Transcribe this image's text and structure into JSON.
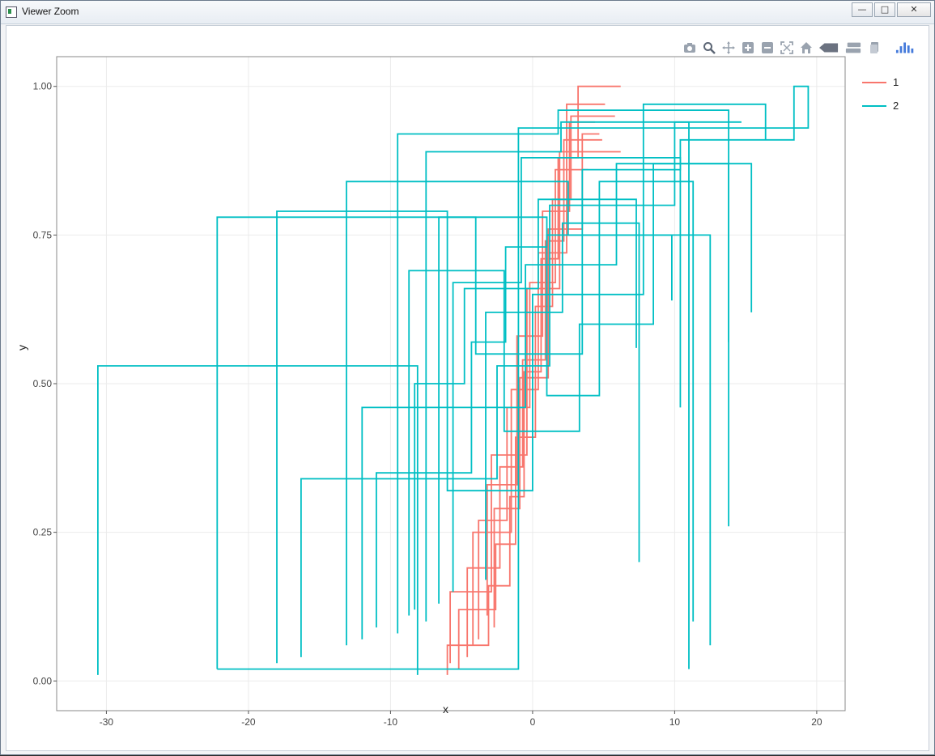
{
  "window": {
    "title": "Viewer Zoom",
    "controls": [
      "minimize",
      "maximize",
      "close"
    ]
  },
  "modebar": {
    "icons": [
      "camera-icon",
      "zoom-icon",
      "pan-icon",
      "zoom-in-icon",
      "zoom-out-icon",
      "autoscale-icon",
      "home-icon",
      "spike-lines-icon",
      "compare-hover-icon",
      "closest-hover-icon",
      "plotly-logo-icon"
    ],
    "accent": "#5a80c0"
  },
  "chart_data": {
    "type": "line",
    "xlabel": "x",
    "ylabel": "y",
    "xlim": [
      -33.5,
      22
    ],
    "ylim": [
      -0.05,
      1.05
    ],
    "x_ticks": [
      "-30",
      "-20",
      "-10",
      "0",
      "10",
      "20"
    ],
    "y_ticks": [
      "0.00",
      "0.25",
      "0.50",
      "0.75",
      "1.00"
    ],
    "grid": true,
    "legend": "right",
    "series": [
      {
        "name": "1",
        "color": "#f8766d",
        "paths": [
          [
            [
              -6.0,
              0.01
            ],
            [
              -6.0,
              0.06
            ],
            [
              -3.1,
              0.06
            ],
            [
              -3.1,
              0.16
            ],
            [
              -1.6,
              0.16
            ],
            [
              -1.6,
              0.31
            ],
            [
              -0.6,
              0.31
            ],
            [
              -0.6,
              0.52
            ],
            [
              0.6,
              0.52
            ],
            [
              0.6,
              0.71
            ],
            [
              1.8,
              0.71
            ],
            [
              1.8,
              0.88
            ],
            [
              3.2,
              0.88
            ],
            [
              3.2,
              1.0
            ],
            [
              6.2,
              1.0
            ]
          ],
          [
            [
              -5.2,
              0.02
            ],
            [
              -5.2,
              0.12
            ],
            [
              -2.6,
              0.12
            ],
            [
              -2.6,
              0.23
            ],
            [
              -1.2,
              0.23
            ],
            [
              -1.2,
              0.41
            ],
            [
              0.2,
              0.41
            ],
            [
              0.2,
              0.63
            ],
            [
              1.4,
              0.63
            ],
            [
              1.4,
              0.81
            ],
            [
              2.7,
              0.81
            ],
            [
              2.7,
              0.95
            ],
            [
              5.8,
              0.95
            ]
          ],
          [
            [
              -4.6,
              0.04
            ],
            [
              -4.6,
              0.19
            ],
            [
              -2.3,
              0.19
            ],
            [
              -2.3,
              0.36
            ],
            [
              -0.7,
              0.36
            ],
            [
              -0.7,
              0.54
            ],
            [
              0.9,
              0.54
            ],
            [
              0.9,
              0.74
            ],
            [
              2.2,
              0.74
            ],
            [
              2.2,
              0.91
            ],
            [
              4.9,
              0.91
            ]
          ],
          [
            [
              -3.8,
              0.07
            ],
            [
              -3.8,
              0.27
            ],
            [
              -1.8,
              0.27
            ],
            [
              -1.8,
              0.46
            ],
            [
              -0.2,
              0.46
            ],
            [
              -0.2,
              0.67
            ],
            [
              1.6,
              0.67
            ],
            [
              1.6,
              0.86
            ],
            [
              3.9,
              0.86
            ]
          ],
          [
            [
              -3.2,
              0.11
            ],
            [
              -3.2,
              0.33
            ],
            [
              -1.1,
              0.33
            ],
            [
              -1.1,
              0.58
            ],
            [
              0.7,
              0.58
            ],
            [
              0.7,
              0.79
            ],
            [
              2.6,
              0.79
            ],
            [
              2.6,
              0.94
            ],
            [
              4.4,
              0.94
            ]
          ],
          [
            [
              -5.8,
              0.03
            ],
            [
              -5.8,
              0.15
            ],
            [
              -2.9,
              0.15
            ],
            [
              -2.9,
              0.38
            ],
            [
              -0.4,
              0.38
            ],
            [
              -0.4,
              0.66
            ],
            [
              1.9,
              0.66
            ],
            [
              1.9,
              0.89
            ],
            [
              6.2,
              0.89
            ]
          ],
          [
            [
              -4.2,
              0.06
            ],
            [
              -4.2,
              0.25
            ],
            [
              -1.5,
              0.25
            ],
            [
              -1.5,
              0.49
            ],
            [
              0.4,
              0.49
            ],
            [
              0.4,
              0.72
            ],
            [
              2.4,
              0.72
            ],
            [
              2.4,
              0.97
            ],
            [
              5.1,
              0.97
            ]
          ],
          [
            [
              -2.7,
              0.09
            ],
            [
              -2.7,
              0.29
            ],
            [
              -0.9,
              0.29
            ],
            [
              -0.9,
              0.51
            ],
            [
              1.1,
              0.51
            ],
            [
              1.1,
              0.76
            ],
            [
              3.5,
              0.76
            ],
            [
              3.5,
              0.92
            ],
            [
              4.7,
              0.92
            ]
          ]
        ]
      },
      {
        "name": "2",
        "color": "#00bfc4",
        "paths": [
          [
            [
              -30.6,
              0.01
            ],
            [
              -30.6,
              0.53
            ],
            [
              -8.1,
              0.53
            ],
            [
              -8.1,
              0.01
            ]
          ],
          [
            [
              -22.2,
              0.02
            ],
            [
              -22.2,
              0.78
            ],
            [
              -4.0,
              0.78
            ],
            [
              -4.0,
              0.55
            ],
            [
              3.5,
              0.55
            ],
            [
              3.5,
              0.86
            ],
            [
              10.4,
              0.86
            ],
            [
              10.4,
              0.91
            ],
            [
              18.4,
              0.91
            ],
            [
              18.4,
              1.0
            ],
            [
              19.4,
              1.0
            ],
            [
              19.4,
              0.93
            ],
            [
              -1.0,
              0.93
            ],
            [
              -1.0,
              0.02
            ],
            [
              -22.2,
              0.02
            ]
          ],
          [
            [
              -18.0,
              0.03
            ],
            [
              -18.0,
              0.79
            ],
            [
              -6.0,
              0.79
            ],
            [
              -6.0,
              0.32
            ],
            [
              0.0,
              0.32
            ],
            [
              0.0,
              0.65
            ],
            [
              7.8,
              0.65
            ],
            [
              7.8,
              0.97
            ],
            [
              16.4,
              0.97
            ],
            [
              16.4,
              0.91
            ]
          ],
          [
            [
              -16.3,
              0.04
            ],
            [
              -16.3,
              0.34
            ],
            [
              -2.5,
              0.34
            ],
            [
              -2.5,
              0.53
            ],
            [
              1.2,
              0.53
            ],
            [
              1.2,
              0.8
            ],
            [
              10.0,
              0.8
            ],
            [
              10.0,
              0.94
            ],
            [
              14.7,
              0.94
            ]
          ],
          [
            [
              -13.1,
              0.06
            ],
            [
              -13.1,
              0.84
            ],
            [
              2.5,
              0.84
            ],
            [
              2.5,
              0.75
            ],
            [
              12.5,
              0.75
            ],
            [
              12.5,
              0.06
            ]
          ],
          [
            [
              -12.0,
              0.07
            ],
            [
              -12.0,
              0.46
            ],
            [
              -0.5,
              0.46
            ],
            [
              -0.5,
              0.7
            ],
            [
              5.9,
              0.7
            ],
            [
              5.9,
              0.87
            ],
            [
              13.8,
              0.87
            ],
            [
              13.8,
              0.57
            ]
          ],
          [
            [
              -9.5,
              0.08
            ],
            [
              -9.5,
              0.92
            ],
            [
              1.8,
              0.92
            ],
            [
              1.8,
              0.96
            ],
            [
              13.8,
              0.96
            ],
            [
              13.8,
              0.26
            ]
          ],
          [
            [
              -7.5,
              0.1
            ],
            [
              -7.5,
              0.89
            ],
            [
              2.0,
              0.89
            ],
            [
              2.0,
              0.94
            ],
            [
              11.0,
              0.94
            ],
            [
              11.0,
              0.02
            ]
          ],
          [
            [
              -8.7,
              0.11
            ],
            [
              -8.7,
              0.69
            ],
            [
              -2.0,
              0.69
            ],
            [
              -2.0,
              0.42
            ],
            [
              3.3,
              0.42
            ],
            [
              3.3,
              0.6
            ],
            [
              8.5,
              0.6
            ],
            [
              8.5,
              0.87
            ],
            [
              15.4,
              0.87
            ],
            [
              15.4,
              0.62
            ]
          ],
          [
            [
              -6.6,
              0.13
            ],
            [
              -6.6,
              0.78
            ],
            [
              1.0,
              0.78
            ],
            [
              1.0,
              0.48
            ],
            [
              4.7,
              0.48
            ],
            [
              4.7,
              0.84
            ],
            [
              11.3,
              0.84
            ],
            [
              11.3,
              0.1
            ]
          ],
          [
            [
              -5.6,
              0.15
            ],
            [
              -5.6,
              0.67
            ],
            [
              -0.8,
              0.67
            ],
            [
              -0.8,
              0.88
            ],
            [
              10.4,
              0.88
            ],
            [
              10.4,
              0.46
            ]
          ],
          [
            [
              -3.3,
              0.17
            ],
            [
              -3.3,
              0.62
            ],
            [
              2.1,
              0.62
            ],
            [
              2.1,
              0.77
            ],
            [
              7.5,
              0.77
            ],
            [
              7.5,
              0.2
            ]
          ],
          [
            [
              -11.0,
              0.09
            ],
            [
              -11.0,
              0.35
            ],
            [
              -4.3,
              0.35
            ],
            [
              -4.3,
              0.57
            ],
            [
              -1.9,
              0.57
            ],
            [
              -1.9,
              0.73
            ],
            [
              1.0,
              0.73
            ],
            [
              1.0,
              0.75
            ],
            [
              9.8,
              0.75
            ],
            [
              9.8,
              0.64
            ]
          ],
          [
            [
              -8.3,
              0.12
            ],
            [
              -8.3,
              0.5
            ],
            [
              -4.8,
              0.5
            ],
            [
              -4.8,
              0.66
            ],
            [
              0.4,
              0.66
            ],
            [
              0.4,
              0.81
            ],
            [
              7.3,
              0.81
            ],
            [
              7.3,
              0.56
            ]
          ]
        ]
      }
    ]
  }
}
